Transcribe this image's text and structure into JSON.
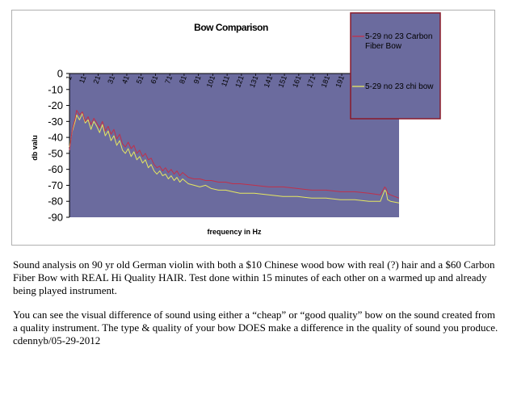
{
  "chart_data": {
    "type": "line",
    "title": "Bow Comparison",
    "xlabel": "frequency in Hz",
    "ylabel": "db valu",
    "ylim": [
      -90,
      0
    ],
    "yticks": [
      0,
      -10,
      -20,
      -30,
      -40,
      -50,
      -60,
      -70,
      -80,
      -90
    ],
    "xlim": [
      1,
      231
    ],
    "xticks": [
      1,
      11,
      21,
      31,
      41,
      51,
      61,
      71,
      81,
      91,
      101,
      111,
      121,
      131,
      141,
      151,
      161,
      171,
      181,
      191,
      201,
      211,
      221
    ],
    "grid": false,
    "legend": "top-right",
    "colors": {
      "plot_bg": "#6b6b9e",
      "carbon": "#c0304a",
      "chi": "#e6e860",
      "legend_border": "#8a1a2a"
    },
    "series": [
      {
        "name": "5-29 no 23 Carbon Fiber Bow",
        "points": [
          [
            1,
            -48
          ],
          [
            3,
            -35
          ],
          [
            5,
            -28
          ],
          [
            6,
            -23
          ],
          [
            8,
            -26
          ],
          [
            10,
            -24
          ],
          [
            12,
            -30
          ],
          [
            14,
            -27
          ],
          [
            16,
            -32
          ],
          [
            18,
            -28
          ],
          [
            20,
            -31
          ],
          [
            22,
            -34
          ],
          [
            24,
            -30
          ],
          [
            26,
            -36
          ],
          [
            28,
            -33
          ],
          [
            30,
            -38
          ],
          [
            32,
            -35
          ],
          [
            34,
            -41
          ],
          [
            36,
            -38
          ],
          [
            38,
            -44
          ],
          [
            40,
            -46
          ],
          [
            42,
            -43
          ],
          [
            44,
            -47
          ],
          [
            46,
            -45
          ],
          [
            48,
            -50
          ],
          [
            50,
            -48
          ],
          [
            52,
            -52
          ],
          [
            54,
            -50
          ],
          [
            56,
            -54
          ],
          [
            58,
            -53
          ],
          [
            60,
            -57
          ],
          [
            62,
            -59
          ],
          [
            64,
            -58
          ],
          [
            66,
            -61
          ],
          [
            68,
            -59
          ],
          [
            70,
            -62
          ],
          [
            72,
            -60
          ],
          [
            74,
            -63
          ],
          [
            76,
            -61
          ],
          [
            78,
            -64
          ],
          [
            80,
            -62
          ],
          [
            84,
            -65
          ],
          [
            88,
            -66
          ],
          [
            92,
            -66
          ],
          [
            96,
            -67
          ],
          [
            100,
            -67
          ],
          [
            105,
            -68
          ],
          [
            110,
            -68
          ],
          [
            115,
            -69
          ],
          [
            120,
            -69
          ],
          [
            130,
            -70
          ],
          [
            140,
            -71
          ],
          [
            150,
            -71
          ],
          [
            160,
            -72
          ],
          [
            170,
            -73
          ],
          [
            180,
            -73
          ],
          [
            190,
            -74
          ],
          [
            200,
            -74
          ],
          [
            210,
            -75
          ],
          [
            218,
            -76
          ],
          [
            221,
            -71
          ],
          [
            222,
            -72
          ],
          [
            223,
            -75
          ],
          [
            225,
            -76
          ],
          [
            231,
            -78
          ]
        ]
      },
      {
        "name": "5-29 no 23 chi bow",
        "points": [
          [
            1,
            -46
          ],
          [
            3,
            -36
          ],
          [
            5,
            -30
          ],
          [
            6,
            -26
          ],
          [
            8,
            -29
          ],
          [
            10,
            -25
          ],
          [
            12,
            -31
          ],
          [
            14,
            -29
          ],
          [
            16,
            -35
          ],
          [
            18,
            -30
          ],
          [
            20,
            -33
          ],
          [
            22,
            -37
          ],
          [
            24,
            -32
          ],
          [
            26,
            -39
          ],
          [
            28,
            -36
          ],
          [
            30,
            -42
          ],
          [
            32,
            -39
          ],
          [
            34,
            -45
          ],
          [
            36,
            -42
          ],
          [
            38,
            -48
          ],
          [
            40,
            -50
          ],
          [
            42,
            -47
          ],
          [
            44,
            -52
          ],
          [
            46,
            -49
          ],
          [
            48,
            -54
          ],
          [
            50,
            -52
          ],
          [
            52,
            -56
          ],
          [
            54,
            -54
          ],
          [
            56,
            -59
          ],
          [
            58,
            -57
          ],
          [
            60,
            -61
          ],
          [
            62,
            -63
          ],
          [
            64,
            -61
          ],
          [
            66,
            -64
          ],
          [
            68,
            -63
          ],
          [
            70,
            -66
          ],
          [
            72,
            -64
          ],
          [
            74,
            -67
          ],
          [
            76,
            -65
          ],
          [
            78,
            -68
          ],
          [
            80,
            -66
          ],
          [
            84,
            -69
          ],
          [
            88,
            -70
          ],
          [
            92,
            -71
          ],
          [
            96,
            -70
          ],
          [
            100,
            -72
          ],
          [
            105,
            -73
          ],
          [
            110,
            -73
          ],
          [
            115,
            -74
          ],
          [
            120,
            -75
          ],
          [
            130,
            -75
          ],
          [
            140,
            -76
          ],
          [
            150,
            -77
          ],
          [
            160,
            -77
          ],
          [
            170,
            -78
          ],
          [
            180,
            -78
          ],
          [
            190,
            -79
          ],
          [
            200,
            -79
          ],
          [
            210,
            -80
          ],
          [
            218,
            -80
          ],
          [
            221,
            -73
          ],
          [
            222,
            -74
          ],
          [
            223,
            -79
          ],
          [
            225,
            -80
          ],
          [
            231,
            -81
          ]
        ]
      }
    ]
  },
  "caption": {
    "para1": "Sound analysis on 90 yr old German violin with both a $10 Chinese wood bow with real (?) hair and a $60 Carbon Fiber Bow with REAL Hi Quality HAIR. Test done within 15 minutes of each other on a warmed up and already being played instrument.",
    "para2": "You can see the visual difference of sound using either a “cheap” or “good quality” bow on the sound created from a quality instrument. The type & quality of your bow DOES make a difference in the quality of sound you produce.",
    "signature": "cdennyb/05-29-2012"
  }
}
